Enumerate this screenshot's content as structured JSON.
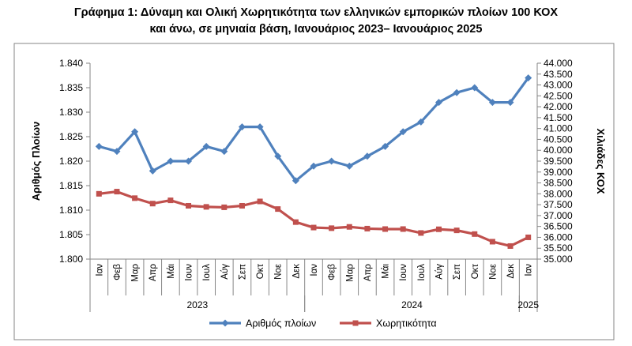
{
  "title": {
    "line1": "Γράφημα 1: Δύναμη και Ολική Χωρητικότητα των ελληνικών εμπορικών πλοίων 100 ΚΟΧ",
    "line2": "και άνω, σε μηνιαία βάση, Ιανουάριος 2023– Ιανουάριος 2025"
  },
  "colors": {
    "series_ships": "#4F81BD",
    "series_capacity": "#C0504D",
    "frame": "#868686"
  },
  "chart_data": {
    "type": "line",
    "categories": [
      "Ιαν",
      "Φεβ",
      "Μαρ",
      "Απρ",
      "Μάι",
      "Ιουν",
      "Ιουλ",
      "Αύγ",
      "Σεπ",
      "Οκτ",
      "Νοε",
      "Δεκ",
      "Ιαν",
      "Φεβ",
      "Μαρ",
      "Απρ",
      "Μάι",
      "Ιουν",
      "Ιουλ",
      "Αύγ",
      "Σεπ",
      "Οκτ",
      "Νοε",
      "Δεκ",
      "Ιαν"
    ],
    "years": [
      {
        "label": "2023",
        "start": 0,
        "end": 11
      },
      {
        "label": "2024",
        "start": 12,
        "end": 23
      },
      {
        "label": "2025",
        "start": 24,
        "end": 24
      }
    ],
    "series": [
      {
        "name": "Αριθμός πλοίων",
        "axis": "left",
        "values": [
          1823,
          1822,
          1826,
          1818,
          1820,
          1820,
          1823,
          1822,
          1827,
          1827,
          1821,
          1816,
          1819,
          1820,
          1819,
          1821,
          1823,
          1826,
          1828,
          1832,
          1834,
          1835,
          1832,
          1832,
          1837
        ]
      },
      {
        "name": "Χωρητικότητα",
        "axis": "right",
        "values": [
          38000,
          38100,
          37800,
          37550,
          37700,
          37450,
          37400,
          37380,
          37450,
          37650,
          37300,
          36700,
          36450,
          36420,
          36480,
          36400,
          36380,
          36380,
          36200,
          36370,
          36320,
          36150,
          35800,
          35600,
          36000
        ]
      }
    ],
    "ylabel_left": "Αριθμός Πλοίων",
    "ylabel_right": "Χιλιάδες ΚΟΧ",
    "ylim_left": [
      1800,
      1840
    ],
    "ylim_right": [
      35000,
      44000
    ],
    "yticks_left": [
      "1.800",
      "1.805",
      "1.810",
      "1.815",
      "1.820",
      "1.825",
      "1.830",
      "1.835",
      "1.840"
    ],
    "yticks_right": [
      "35.000",
      "35.500",
      "36.000",
      "36.500",
      "37.000",
      "37.500",
      "38.000",
      "38.500",
      "39.000",
      "39.500",
      "40.000",
      "40.500",
      "41.000",
      "41.500",
      "42.000",
      "42.500",
      "43.000",
      "43.500",
      "44.000"
    ],
    "legend": [
      "Αριθμός πλοίων",
      "Χωρητικότητα"
    ],
    "legend_position": "bottom"
  }
}
